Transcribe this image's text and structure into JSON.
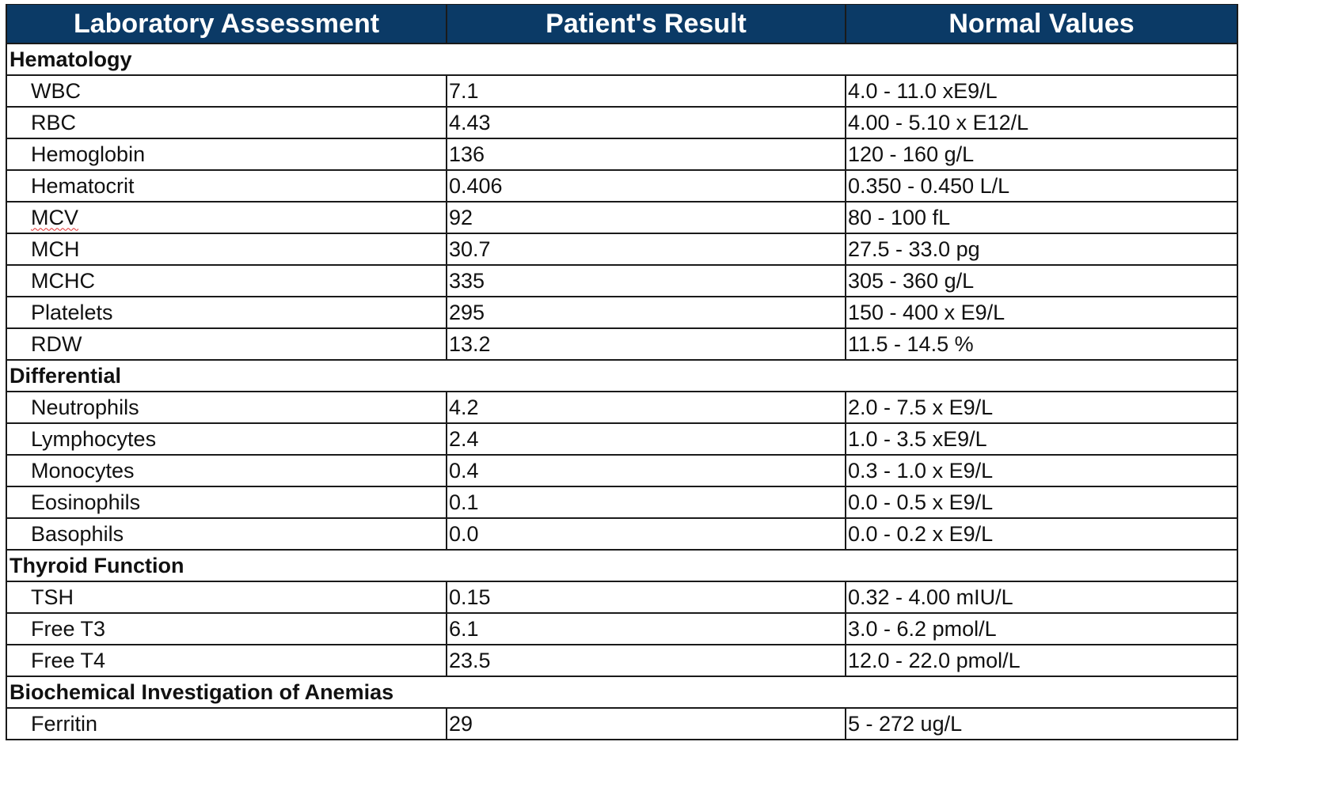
{
  "header": {
    "col1": "Laboratory Assessment",
    "col2": "Patient's Result",
    "col3": "Normal Values"
  },
  "sections": [
    {
      "title": "Hematology",
      "rows": [
        {
          "test": "WBC",
          "result": "7.1",
          "normal": "4.0 - 11.0 xE9/L"
        },
        {
          "test": "RBC",
          "result": "4.43",
          "normal": "4.00 - 5.10 x E12/L"
        },
        {
          "test": "Hemoglobin",
          "result": "136",
          "normal": "120 - 160 g/L"
        },
        {
          "test": "Hematocrit",
          "result": "0.406",
          "normal": "0.350 - 0.450 L/L"
        },
        {
          "test": "MCV",
          "result": "92",
          "normal": "80 - 100 fL"
        },
        {
          "test": "MCH",
          "result": "30.7",
          "normal": "27.5 - 33.0 pg"
        },
        {
          "test": "MCHC",
          "result": "335",
          "normal": "305 - 360 g/L"
        },
        {
          "test": "Platelets",
          "result": "295",
          "normal": "150 - 400 x E9/L"
        },
        {
          "test": "RDW",
          "result": "13.2",
          "normal": "11.5 - 14.5 %"
        }
      ]
    },
    {
      "title": "Differential",
      "rows": [
        {
          "test": "Neutrophils",
          "result": "4.2",
          "normal": "2.0 - 7.5 x E9/L"
        },
        {
          "test": "Lymphocytes",
          "result": "2.4",
          "normal": "1.0 - 3.5 xE9/L"
        },
        {
          "test": "Monocytes",
          "result": "0.4",
          "normal": "0.3 - 1.0 x E9/L"
        },
        {
          "test": "Eosinophils",
          "result": "0.1",
          "normal": "0.0 - 0.5 x E9/L"
        },
        {
          "test": "Basophils",
          "result": "0.0",
          "normal": "0.0 - 0.2 x E9/L"
        }
      ]
    },
    {
      "title": "Thyroid Function",
      "rows": [
        {
          "test": "TSH",
          "result": "0.15",
          "normal": "0.32 - 4.00 mIU/L"
        },
        {
          "test": "Free T3",
          "result": "6.1",
          "normal": "3.0 - 6.2 pmol/L"
        },
        {
          "test": "Free T4",
          "result": "23.5",
          "normal": "12.0 - 22.0 pmol/L"
        }
      ]
    },
    {
      "title": "Biochemical Investigation of Anemias",
      "rows": [
        {
          "test": "Ferritin",
          "result": "29",
          "normal": "5 - 272 ug/L"
        }
      ]
    }
  ],
  "colors": {
    "header_bg": "#0b3a66",
    "header_text": "#ffffff",
    "border": "#1a1a1a",
    "spellcheck_underline": "#e03030"
  }
}
